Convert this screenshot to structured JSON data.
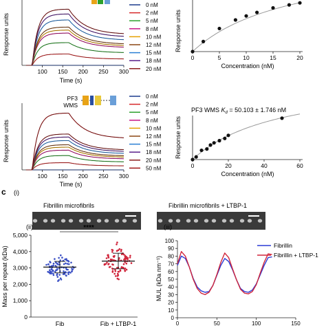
{
  "panel_c_label": "c",
  "subpanels": {
    "i": "(i)",
    "ii": "(ii)",
    "iii": "(iii)"
  },
  "chart_data": [
    {
      "id": "spr_top",
      "type": "line",
      "xlabel": "Time (s)",
      "ylabel": "Response units",
      "xlim": [
        50,
        300
      ],
      "xticks": [
        100,
        150,
        200,
        250,
        300
      ],
      "colors": [
        "#1a3a8c",
        "#d62728",
        "#2ca02c",
        "#c71585",
        "#e6a000",
        "#8b4513",
        "#2a7fd4",
        "#5a1f8a",
        "#8b1a1a"
      ],
      "legend": [
        "0 nM",
        "2 nM",
        "5 nM",
        "8 nM",
        "10 nM",
        "12 nM",
        "15 nM",
        "18 nM",
        "20 nM"
      ],
      "plateau_fraction": [
        0.0,
        0.19,
        0.38,
        0.54,
        0.59,
        0.64,
        0.76,
        0.86,
        0.94
      ]
    },
    {
      "id": "kd_top",
      "type": "scatter",
      "xlabel": "Concentration (nM)",
      "ylabel": "Response units",
      "xlim": [
        0,
        20
      ],
      "xticks": [
        0,
        5,
        10,
        15,
        20
      ],
      "points": [
        [
          0,
          0.0
        ],
        [
          2,
          0.2
        ],
        [
          5,
          0.46
        ],
        [
          8,
          0.63
        ],
        [
          10,
          0.71
        ],
        [
          12,
          0.78
        ],
        [
          15,
          0.87
        ],
        [
          18,
          0.93
        ],
        [
          20,
          0.97
        ]
      ]
    },
    {
      "id": "spr_bottom",
      "type": "line",
      "title": "PF3 WMS",
      "xlabel": "Time (s)",
      "ylabel": "Response units",
      "xlim": [
        50,
        300
      ],
      "xticks": [
        100,
        150,
        200,
        250,
        300
      ],
      "colors": [
        "#1a3a8c",
        "#d62728",
        "#2ca02c",
        "#c71585",
        "#e6a000",
        "#8b4513",
        "#2a7fd4",
        "#5a1f8a",
        "#8b1a1a",
        "#a01414"
      ],
      "legend": [
        "0 nM",
        "2 nM",
        "5 nM",
        "8 nM",
        "10 nM",
        "12 nM",
        "15 nM",
        "18 nM",
        "20 nM",
        "50 nM"
      ],
      "plateau_fraction": [
        0.0,
        0.12,
        0.24,
        0.33,
        0.38,
        0.42,
        0.49,
        0.55,
        0.6,
        0.95
      ]
    },
    {
      "id": "kd_bottom",
      "type": "scatter",
      "annotation": "PF3 WMS Kd = 50.103 ± 1.746 nM",
      "xlabel": "Concentration (nM)",
      "ylabel": "Response units",
      "xlim": [
        0,
        60
      ],
      "xticks": [
        0,
        20,
        40,
        60
      ],
      "points": [
        [
          0,
          0.0
        ],
        [
          2,
          0.06
        ],
        [
          5,
          0.21
        ],
        [
          8,
          0.24
        ],
        [
          10,
          0.33
        ],
        [
          12,
          0.38
        ],
        [
          15,
          0.43
        ],
        [
          18,
          0.48
        ],
        [
          20,
          0.55
        ],
        [
          50,
          0.94
        ]
      ]
    },
    {
      "id": "mpr",
      "type": "scatter",
      "ylabel": "Mass per repeat (kDa)",
      "ylim": [
        0,
        5000
      ],
      "yticks": [
        0,
        1000,
        2000,
        3000,
        4000,
        5000
      ],
      "yticklabels": [
        "0",
        "1,000",
        "2,000",
        "3,000",
        "4,000",
        "5,000"
      ],
      "categories": [
        "Fib",
        "Fib + LTBP-1"
      ],
      "category_colors": [
        "#3a4fc4",
        "#d0253b"
      ],
      "means": [
        3050,
        3420
      ],
      "sd": [
        [
          2700,
          3400
        ],
        [
          2950,
          3900
        ]
      ],
      "significance": "****"
    },
    {
      "id": "mul",
      "type": "line",
      "ylabel": "MUL (kDa nm⁻¹)",
      "xlim": [
        0,
        150
      ],
      "xticks": [
        0,
        50,
        100,
        150
      ],
      "ylim": [
        0,
        100
      ],
      "yticks": [
        0,
        10,
        20,
        30,
        40,
        50,
        60,
        70,
        80,
        90,
        100
      ],
      "series": [
        {
          "name": "Fibrillin",
          "color": "#2a3bd6",
          "x": [
            0,
            5,
            10,
            15,
            20,
            25,
            30,
            35,
            40,
            45,
            50,
            55,
            60,
            65,
            70,
            75,
            80,
            85,
            90,
            95,
            100,
            105,
            110,
            115,
            120
          ],
          "y": [
            68,
            80,
            77,
            66,
            51,
            40,
            35,
            33,
            34,
            42,
            55,
            68,
            77,
            73,
            62,
            49,
            38,
            34,
            33,
            36,
            44,
            56,
            68,
            78,
            79
          ]
        },
        {
          "name": "Fibrillin + LTBP-1",
          "color": "#d0253b",
          "x": [
            0,
            5,
            10,
            15,
            20,
            25,
            30,
            35,
            40,
            45,
            50,
            55,
            60,
            65,
            70,
            75,
            80,
            85,
            90,
            95,
            100,
            105,
            110,
            115,
            120
          ],
          "y": [
            70,
            86,
            80,
            66,
            50,
            38,
            32,
            30,
            33,
            42,
            56,
            72,
            84,
            78,
            63,
            49,
            37,
            32,
            31,
            34,
            43,
            58,
            72,
            83,
            82
          ]
        }
      ]
    }
  ],
  "micrographs": {
    "left_title": "Fibrillin microfibrils",
    "right_title": "Fibrillin microfibrils + LTBP-1"
  }
}
